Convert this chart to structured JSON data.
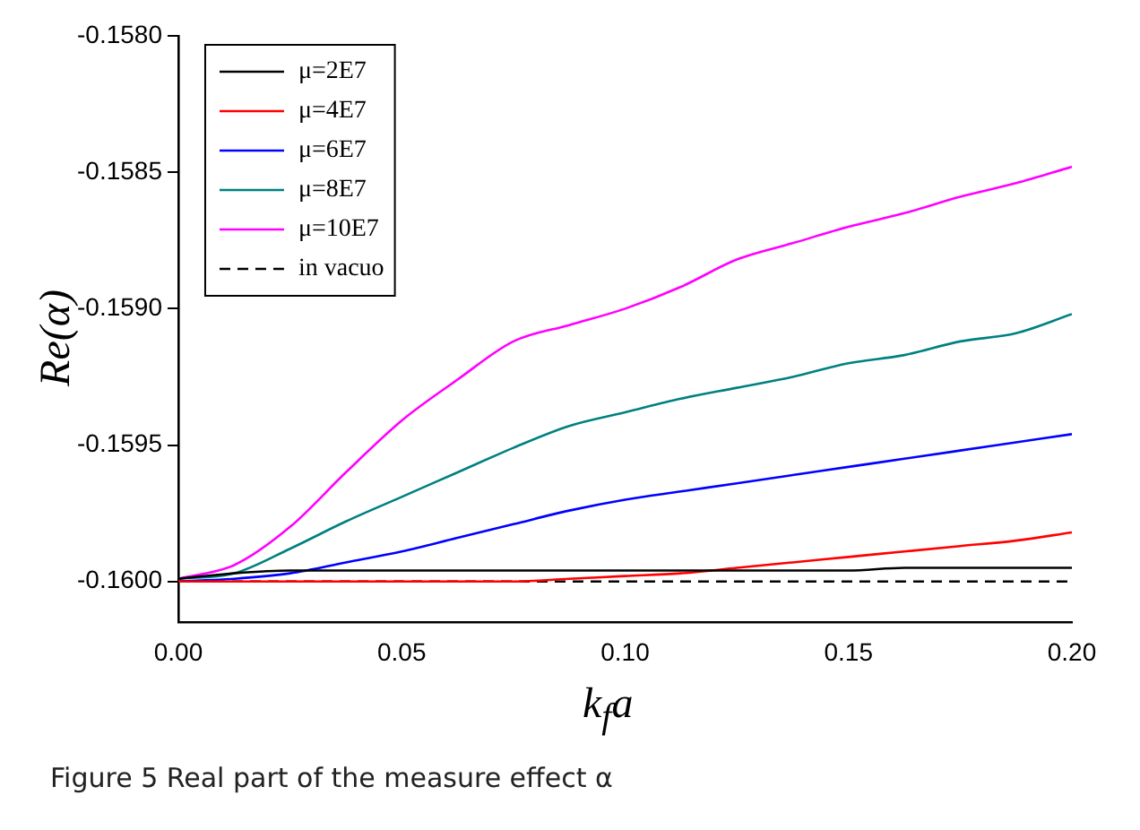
{
  "chart_data": {
    "type": "line",
    "xlabel": "k$_{f}$a",
    "ylabel": "Re(α)",
    "annotations": [
      "Figure 5  Real part of the measure effect α"
    ],
    "x": [
      0,
      0.0125,
      0.025,
      0.0375,
      0.05,
      0.0625,
      0.075,
      0.0875,
      0.1,
      0.1125,
      0.125,
      0.1375,
      0.15,
      0.1625,
      0.175,
      0.1875,
      0.2
    ],
    "xlim": [
      0,
      0.2
    ],
    "xticks": [
      {
        "value": 0,
        "label": "0.00"
      },
      {
        "value": 0.05,
        "label": "0.05"
      },
      {
        "value": 0.1,
        "label": "0.10"
      },
      {
        "value": 0.15,
        "label": "0.15"
      },
      {
        "value": 0.2,
        "label": "0.20"
      }
    ],
    "ylim": [
      -0.16015,
      -0.158
    ],
    "yticks": [
      {
        "value": -0.16,
        "label": "-0.1600"
      },
      {
        "value": -0.1595,
        "label": "-0.1595"
      },
      {
        "value": -0.159,
        "label": "-0.1590"
      },
      {
        "value": -0.1585,
        "label": "-0.1585"
      },
      {
        "value": -0.158,
        "label": "-0.1580"
      }
    ],
    "grid": false,
    "legend": "top left",
    "marker": "none",
    "series": [
      {
        "name": "μ=2E7",
        "color": "#000000",
        "values": [
          -0.15999,
          -0.15997,
          -0.15996,
          -0.15996,
          -0.15996,
          -0.15996,
          -0.15996,
          -0.15996,
          -0.15996,
          -0.15996,
          -0.15996,
          -0.15996,
          -0.15996,
          -0.15995,
          -0.15995,
          -0.15995,
          -0.15995
        ]
      },
      {
        "name": "μ=4E7",
        "color": "#ff0000",
        "values": [
          -0.16,
          -0.16,
          -0.16,
          -0.16,
          -0.16,
          -0.16,
          -0.16,
          -0.15999,
          -0.15998,
          -0.15997,
          -0.15995,
          -0.15993,
          -0.15991,
          -0.15989,
          -0.15987,
          -0.15985,
          -0.15982
        ]
      },
      {
        "name": "μ=6E7",
        "color": "#0000ff",
        "values": [
          -0.16,
          -0.15999,
          -0.15997,
          -0.15993,
          -0.15989,
          -0.15984,
          -0.15979,
          -0.15974,
          -0.1597,
          -0.15967,
          -0.15964,
          -0.15961,
          -0.15958,
          -0.15955,
          -0.15952,
          -0.15949,
          -0.15946
        ]
      },
      {
        "name": "μ=8E7",
        "color": "#008080",
        "values": [
          -0.15999,
          -0.15997,
          -0.15988,
          -0.15978,
          -0.15969,
          -0.1596,
          -0.15951,
          -0.15943,
          -0.15938,
          -0.15933,
          -0.15929,
          -0.15925,
          -0.1592,
          -0.15917,
          -0.15912,
          -0.15909,
          -0.15902
        ]
      },
      {
        "name": "μ=10E7",
        "color": "#ff00ff",
        "values": [
          -0.15999,
          -0.15994,
          -0.1598,
          -0.1596,
          -0.15941,
          -0.15926,
          -0.15912,
          -0.15906,
          -0.159,
          -0.15892,
          -0.15882,
          -0.15876,
          -0.1587,
          -0.15865,
          -0.15859,
          -0.15854,
          -0.15848
        ]
      },
      {
        "name": "in vacuo",
        "color": "#000000",
        "line_style": "dashed",
        "values": [
          -0.16,
          -0.16,
          -0.16,
          -0.16,
          -0.16,
          -0.16,
          -0.16,
          -0.16,
          -0.16,
          -0.16,
          -0.16,
          -0.16,
          -0.16,
          -0.16,
          -0.16,
          -0.16,
          -0.16
        ]
      }
    ]
  }
}
